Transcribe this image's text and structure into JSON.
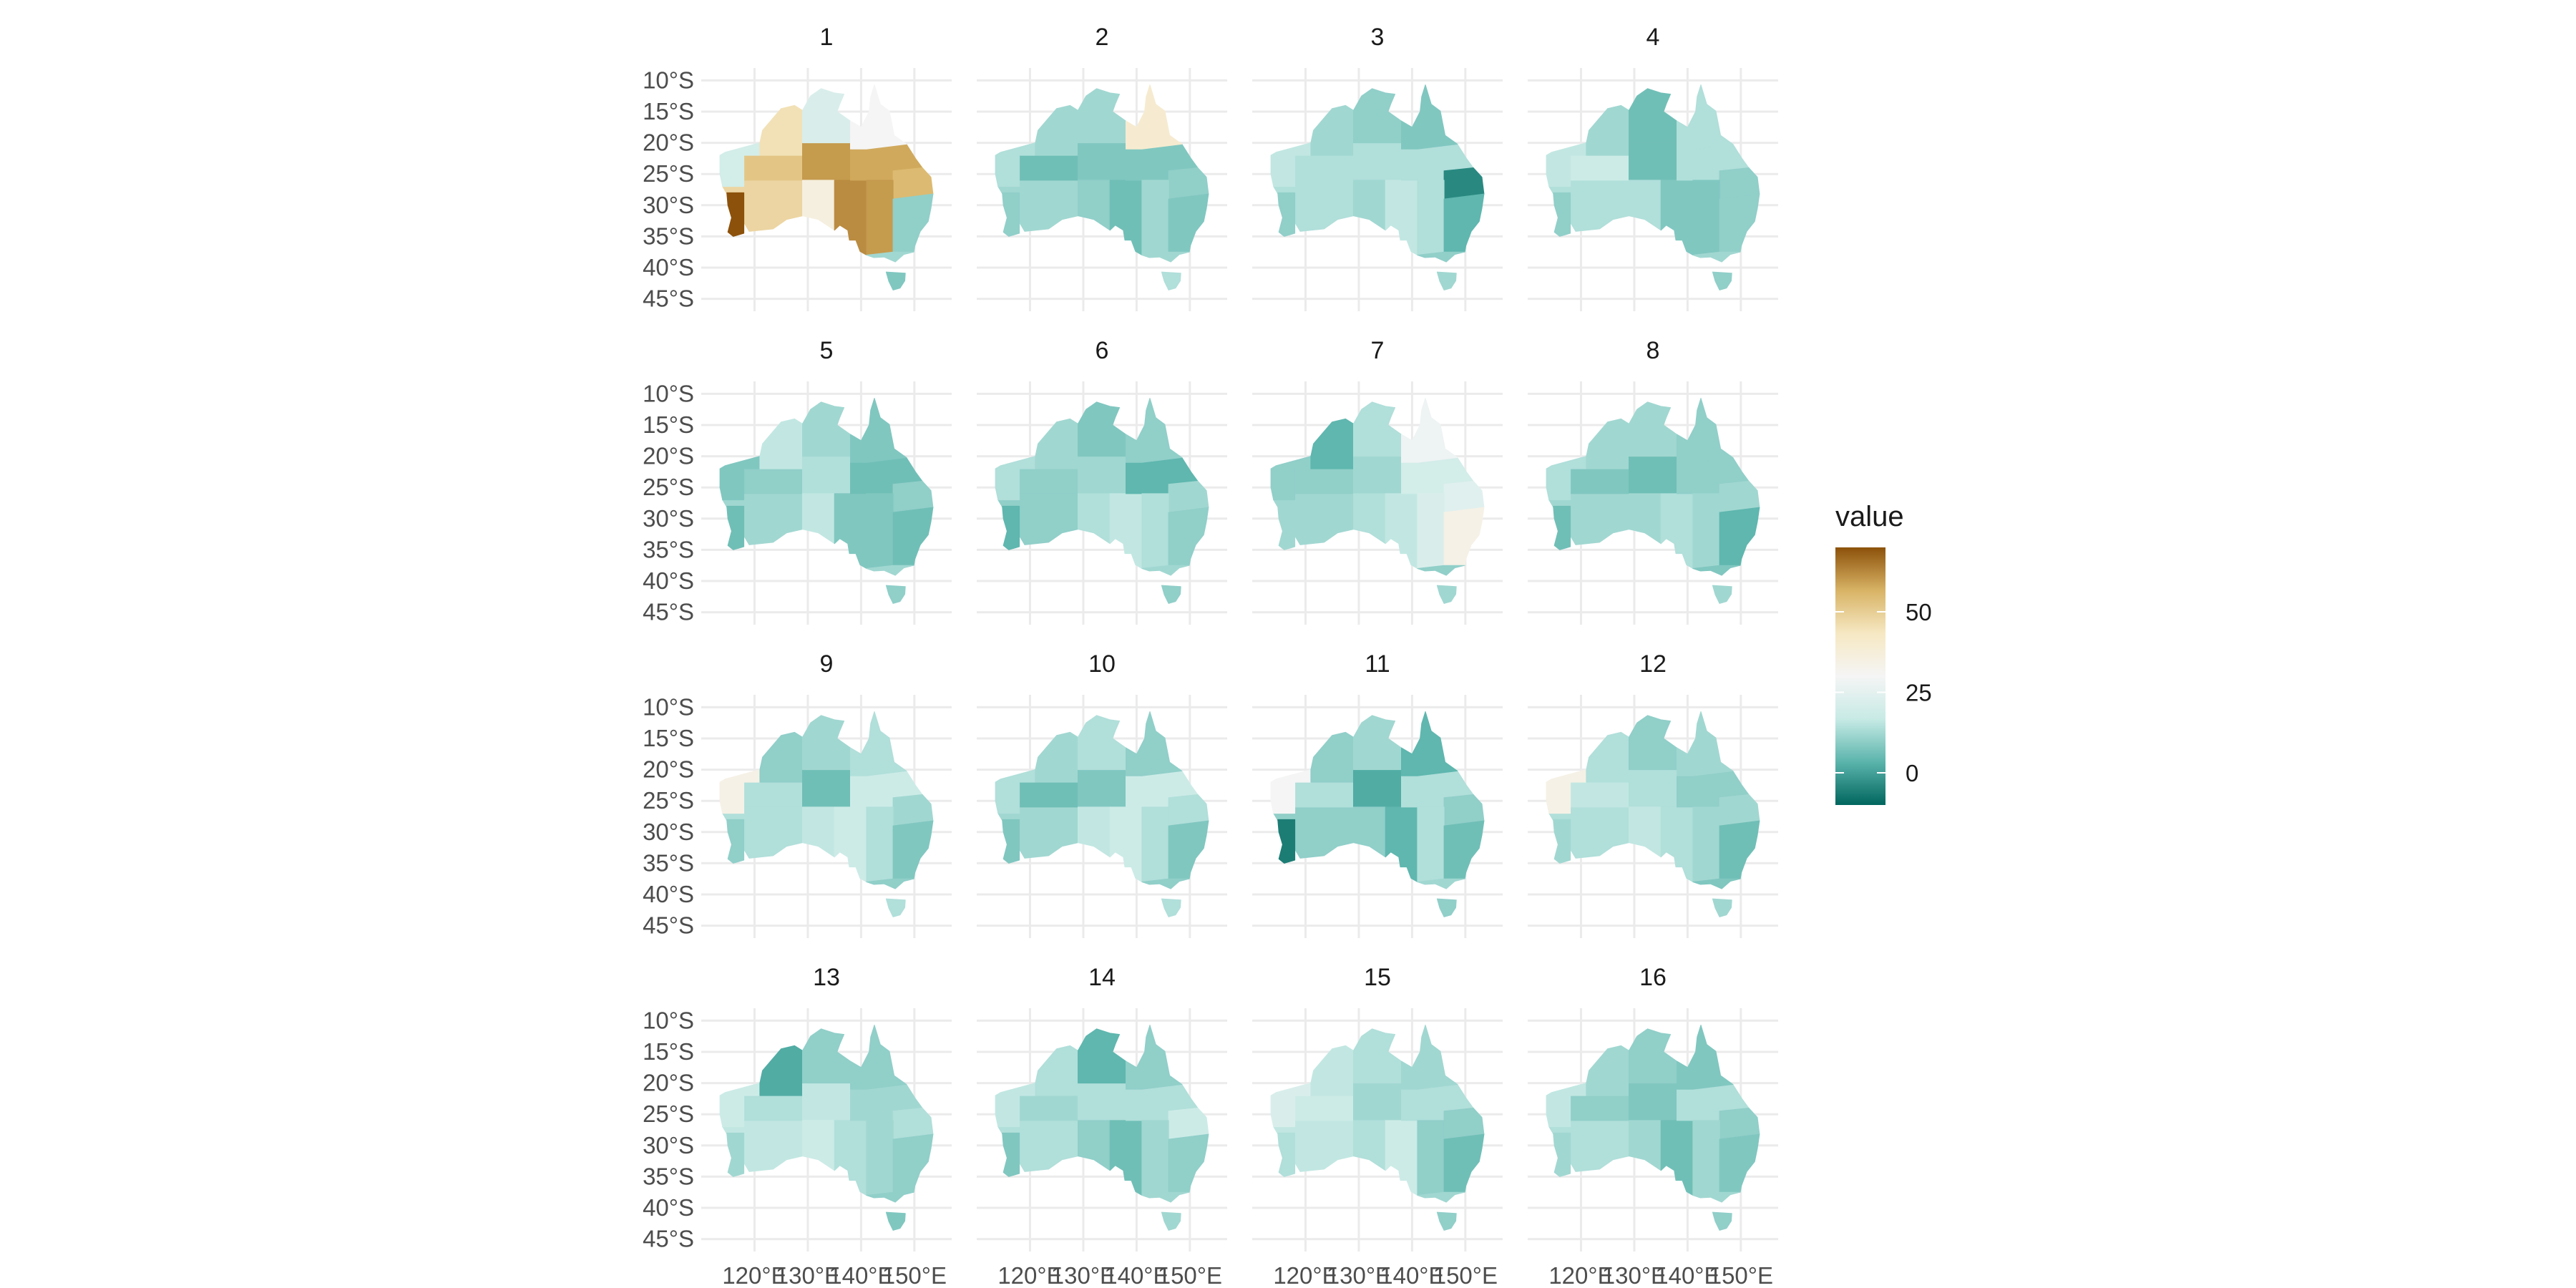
{
  "chart_data": {
    "type": "heatmap",
    "subtype": "faceted choropleth map of Australian regions",
    "facets": [
      {
        "label": "1",
        "regions": {
          "WA-N": 45,
          "WA-C": 52,
          "WA-SW": 70,
          "WA-S": 48,
          "WA-W": 20,
          "NT-N": 22,
          "NT-S": 60,
          "SA-N": 62,
          "SA-W": 36,
          "QLD-N": 30,
          "QLD-C": 58,
          "QLD-S": 55,
          "NSW-W": 60,
          "NSW-E": 10,
          "VIC": 12,
          "TAS": 8
        }
      },
      {
        "label": "2",
        "regions": {
          "WA-N": 12,
          "WA-C": 6,
          "WA-SW": 10,
          "WA-S": 12,
          "WA-W": 14,
          "NT-N": 12,
          "NT-S": 8,
          "SA-N": 6,
          "SA-W": 10,
          "QLD-N": 40,
          "QLD-C": 8,
          "QLD-S": 10,
          "NSW-W": 12,
          "NSW-E": 8,
          "VIC": 12,
          "TAS": 14
        }
      },
      {
        "label": "3",
        "regions": {
          "WA-N": 12,
          "WA-C": 14,
          "WA-SW": 10,
          "WA-S": 14,
          "WA-W": 16,
          "NT-N": 10,
          "NT-S": 14,
          "SA-N": 16,
          "SA-W": 12,
          "QLD-N": 8,
          "QLD-C": 14,
          "QLD-S": -4,
          "NSW-W": 14,
          "NSW-E": 4,
          "VIC": 10,
          "TAS": 12
        }
      },
      {
        "label": "4",
        "regions": {
          "WA-N": 12,
          "WA-C": 18,
          "WA-SW": 10,
          "WA-S": 14,
          "WA-W": 16,
          "NT-N": 6,
          "NT-S": 6,
          "SA-N": 8,
          "SA-W": 14,
          "QLD-N": 14,
          "QLD-C": 14,
          "QLD-S": 10,
          "NSW-W": 8,
          "NSW-E": 10,
          "VIC": 12,
          "TAS": 10
        }
      },
      {
        "label": "5",
        "regions": {
          "WA-N": 16,
          "WA-C": 10,
          "WA-SW": 6,
          "WA-S": 12,
          "WA-W": 8,
          "NT-N": 12,
          "NT-S": 14,
          "SA-N": 8,
          "SA-W": 16,
          "QLD-N": 8,
          "QLD-C": 6,
          "QLD-S": 10,
          "NSW-W": 8,
          "NSW-E": 6,
          "VIC": 12,
          "TAS": 10
        }
      },
      {
        "label": "6",
        "regions": {
          "WA-N": 12,
          "WA-C": 10,
          "WA-SW": 4,
          "WA-S": 10,
          "WA-W": 14,
          "NT-N": 8,
          "NT-S": 12,
          "SA-N": 16,
          "SA-W": 14,
          "QLD-N": 10,
          "QLD-C": 4,
          "QLD-S": 12,
          "NSW-W": 14,
          "NSW-E": 10,
          "VIC": 12,
          "TAS": 10
        }
      },
      {
        "label": "7",
        "regions": {
          "WA-N": 4,
          "WA-C": 10,
          "WA-SW": 12,
          "WA-S": 12,
          "WA-W": 10,
          "NT-N": 14,
          "NT-S": 12,
          "SA-N": 16,
          "SA-W": 14,
          "QLD-N": 28,
          "QLD-C": 20,
          "QLD-S": 24,
          "NSW-W": 22,
          "NSW-E": 34,
          "VIC": 10,
          "TAS": 12
        }
      },
      {
        "label": "8",
        "regions": {
          "WA-N": 12,
          "WA-C": 8,
          "WA-SW": 6,
          "WA-S": 12,
          "WA-W": 14,
          "NT-N": 12,
          "NT-S": 6,
          "SA-N": 14,
          "SA-W": 12,
          "QLD-N": 10,
          "QLD-C": 10,
          "QLD-S": 12,
          "NSW-W": 12,
          "NSW-E": 4,
          "VIC": 8,
          "TAS": 12
        }
      },
      {
        "label": "9",
        "regions": {
          "WA-N": 10,
          "WA-C": 14,
          "WA-SW": 10,
          "WA-S": 14,
          "WA-W": 34,
          "NT-N": 12,
          "NT-S": 6,
          "SA-N": 18,
          "SA-W": 16,
          "QLD-N": 14,
          "QLD-C": 18,
          "QLD-S": 12,
          "NSW-W": 14,
          "NSW-E": 8,
          "VIC": 10,
          "TAS": 14
        }
      },
      {
        "label": "10",
        "regions": {
          "WA-N": 12,
          "WA-C": 6,
          "WA-SW": 8,
          "WA-S": 12,
          "WA-W": 14,
          "NT-N": 14,
          "NT-S": 8,
          "SA-N": 18,
          "SA-W": 16,
          "QLD-N": 10,
          "QLD-C": 18,
          "QLD-S": 14,
          "NSW-W": 14,
          "NSW-E": 8,
          "VIC": 10,
          "TAS": 14
        }
      },
      {
        "label": "11",
        "regions": {
          "WA-N": 10,
          "WA-C": 14,
          "WA-SW": -6,
          "WA-S": 10,
          "WA-W": 30,
          "NT-N": 12,
          "NT-S": 2,
          "SA-N": 4,
          "SA-W": 10,
          "QLD-N": 4,
          "QLD-C": 14,
          "QLD-S": 10,
          "NSW-W": 14,
          "NSW-E": 6,
          "VIC": 12,
          "TAS": 10
        }
      },
      {
        "label": "12",
        "regions": {
          "WA-N": 14,
          "WA-C": 16,
          "WA-SW": 12,
          "WA-S": 14,
          "WA-W": 34,
          "NT-N": 10,
          "NT-S": 14,
          "SA-N": 14,
          "SA-W": 16,
          "QLD-N": 12,
          "QLD-C": 10,
          "QLD-S": 12,
          "NSW-W": 12,
          "NSW-E": 6,
          "VIC": 8,
          "TAS": 12
        }
      },
      {
        "label": "13",
        "regions": {
          "WA-N": 2,
          "WA-C": 14,
          "WA-SW": 12,
          "WA-S": 16,
          "WA-W": 18,
          "NT-N": 10,
          "NT-S": 16,
          "SA-N": 14,
          "SA-W": 18,
          "QLD-N": 10,
          "QLD-C": 12,
          "QLD-S": 14,
          "NSW-W": 12,
          "NSW-E": 10,
          "VIC": 10,
          "TAS": 8
        }
      },
      {
        "label": "14",
        "regions": {
          "WA-N": 14,
          "WA-C": 12,
          "WA-SW": 8,
          "WA-S": 14,
          "WA-W": 16,
          "NT-N": 4,
          "NT-S": 14,
          "SA-N": 6,
          "SA-W": 10,
          "QLD-N": 10,
          "QLD-C": 14,
          "QLD-S": 18,
          "NSW-W": 12,
          "NSW-E": 10,
          "VIC": 12,
          "TAS": 12
        }
      },
      {
        "label": "15",
        "regions": {
          "WA-N": 16,
          "WA-C": 18,
          "WA-SW": 14,
          "WA-S": 16,
          "WA-W": 22,
          "NT-N": 14,
          "NT-S": 12,
          "SA-N": 18,
          "SA-W": 14,
          "QLD-N": 12,
          "QLD-C": 14,
          "QLD-S": 10,
          "NSW-W": 10,
          "NSW-E": 6,
          "VIC": 12,
          "TAS": 10
        }
      },
      {
        "label": "16",
        "regions": {
          "WA-N": 12,
          "WA-C": 10,
          "WA-SW": 12,
          "WA-S": 14,
          "WA-W": 16,
          "NT-N": 10,
          "NT-S": 8,
          "SA-N": 6,
          "SA-W": 12,
          "QLD-N": 8,
          "QLD-C": 14,
          "QLD-S": 10,
          "NSW-W": 12,
          "NSW-E": 8,
          "VIC": 12,
          "TAS": 10
        }
      }
    ],
    "x_ticks": [
      "120°E",
      "130°E",
      "140°E",
      "150°E"
    ],
    "y_ticks": [
      "10°S",
      "15°S",
      "20°S",
      "25°S",
      "30°S",
      "35°S",
      "40°S",
      "45°S"
    ],
    "xlim": [
      110,
      157
    ],
    "ylim": [
      -47,
      -8
    ],
    "grid": true,
    "legend": {
      "title": "value",
      "position": "right",
      "range": [
        -10,
        70
      ],
      "ticks": [
        0,
        25,
        50
      ],
      "palette": [
        "#01665e",
        "#5ab4ac",
        "#c7eae5",
        "#f5f5f5",
        "#f6e8c3",
        "#d8b365",
        "#8c510a"
      ]
    }
  }
}
